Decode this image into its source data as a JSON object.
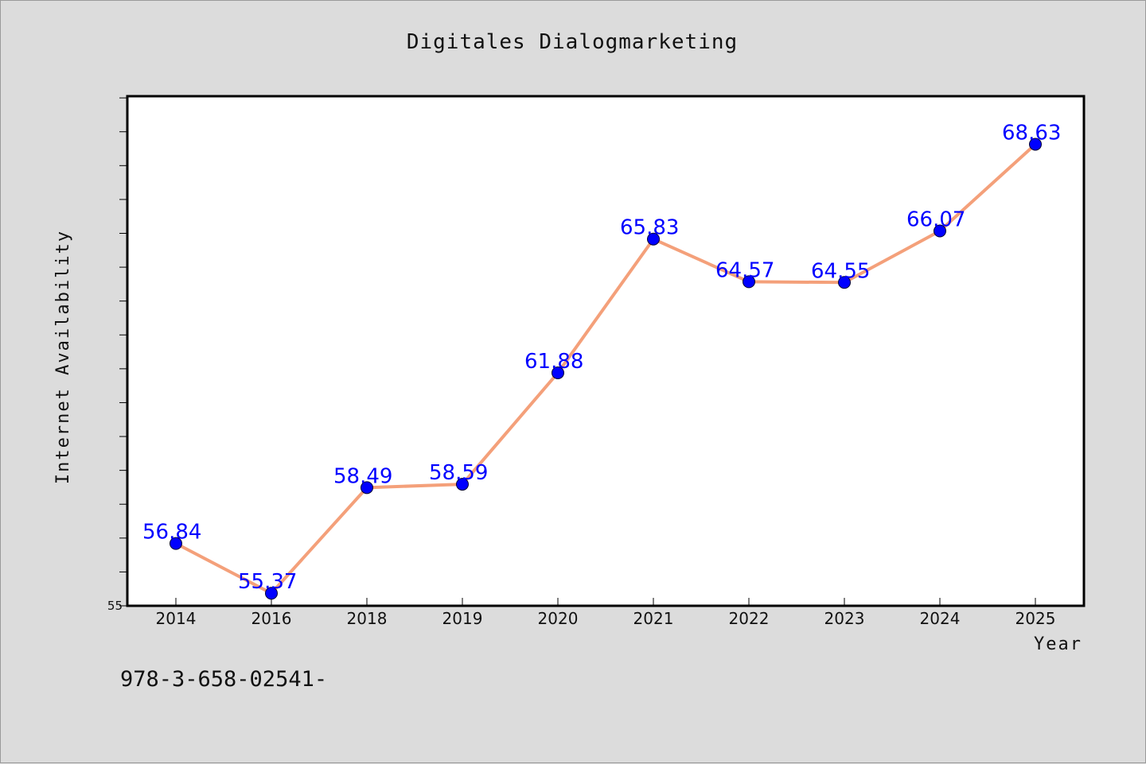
{
  "chart_data": {
    "type": "line",
    "title": "Digitales Dialogmarketing",
    "xlabel": "Year",
    "ylabel": "Internet Availability",
    "categories": [
      "2014",
      "2016",
      "2018",
      "2019",
      "2020",
      "2021",
      "2022",
      "2023",
      "2024",
      "2025"
    ],
    "series": [
      {
        "values": [
          56.84,
          55.37,
          58.49,
          58.59,
          61.88,
          65.83,
          64.57,
          64.55,
          66.07,
          68.63
        ],
        "data_labels": [
          "56.84",
          "55.37",
          "58.49",
          "58.59",
          "61.88",
          "65.83",
          "64.57",
          "64.55",
          "66.07",
          "68.63"
        ],
        "line_color": "#f4a07a",
        "marker_color": "#0000ff"
      }
    ],
    "ylim": [
      55,
      70.05
    ],
    "yticks_labeled": [
      "55"
    ],
    "ytick_minor_step": 1,
    "grid": false,
    "legend": "none",
    "annotation": "978-3-658-02541-",
    "colors": {
      "background": "#dcdcdc",
      "plot_background": "#ffffff",
      "line": "#f4a07a",
      "marker": "#0000ff",
      "data_label": "#0000ff"
    }
  }
}
